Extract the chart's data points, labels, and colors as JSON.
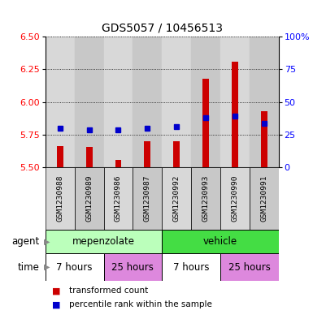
{
  "title": "GDS5057 / 10456513",
  "samples": [
    "GSM1230988",
    "GSM1230989",
    "GSM1230986",
    "GSM1230987",
    "GSM1230992",
    "GSM1230993",
    "GSM1230990",
    "GSM1230991"
  ],
  "bar_values": [
    5.665,
    5.66,
    5.56,
    5.7,
    5.7,
    6.18,
    6.31,
    5.93
  ],
  "bar_bottom": 5.5,
  "percentile_values": [
    5.8,
    5.79,
    5.79,
    5.8,
    5.81,
    5.88,
    5.89,
    5.84
  ],
  "ylim_left": [
    5.5,
    6.5
  ],
  "ylim_right": [
    0,
    100
  ],
  "yticks_left": [
    5.5,
    5.75,
    6.0,
    6.25,
    6.5
  ],
  "yticks_right": [
    0,
    25,
    50,
    75,
    100
  ],
  "bar_color": "#cc0000",
  "dot_color": "#0000cc",
  "agent_row": [
    {
      "label": "mepenzolate",
      "color": "#bbffbb",
      "span": [
        0,
        4
      ]
    },
    {
      "label": "vehicle",
      "color": "#44dd44",
      "span": [
        4,
        8
      ]
    }
  ],
  "time_row": [
    {
      "label": "7 hours",
      "color": "#ffffff",
      "span": [
        0,
        2
      ]
    },
    {
      "label": "25 hours",
      "color": "#dd88dd",
      "span": [
        2,
        4
      ]
    },
    {
      "label": "7 hours",
      "color": "#ffffff",
      "span": [
        4,
        6
      ]
    },
    {
      "label": "25 hours",
      "color": "#dd88dd",
      "span": [
        6,
        8
      ]
    }
  ],
  "col_bg_colors": [
    "#d8d8d8",
    "#c8c8c8"
  ],
  "label_agent": "agent",
  "label_time": "time",
  "legend_red": "transformed count",
  "legend_blue": "percentile rank within the sample"
}
